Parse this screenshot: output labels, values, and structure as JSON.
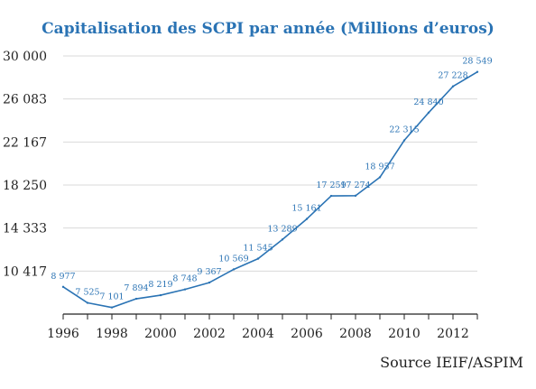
{
  "colors": {
    "title": "#2a73b4",
    "line": "#2a73b4",
    "label": "#2a73b4",
    "axis": "#222222",
    "grid": "#d9d9d9"
  },
  "chart_data": {
    "type": "line",
    "title": "Capitalisation des SCPI par année (Millions d’euros)",
    "source": "Source IEIF/ASPIM",
    "x": [
      1996,
      1997,
      1998,
      1999,
      2000,
      2001,
      2002,
      2003,
      2004,
      2005,
      2006,
      2007,
      2008,
      2009,
      2010,
      2011,
      2012,
      2013
    ],
    "values": [
      8977,
      7525,
      7101,
      7894,
      8219,
      8748,
      9367,
      10569,
      11545,
      13289,
      15161,
      17259,
      17274,
      18957,
      22315,
      24840,
      27228,
      28549
    ],
    "data_labels": [
      "8 977",
      "7 525",
      "7 101",
      "7 894",
      "8 219",
      "8 748",
      "9 367",
      "10 569",
      "11 545",
      "13 289",
      "15 161",
      "17 259",
      "17 274",
      "18 957",
      "22 315",
      "24 840",
      "27 228",
      "28 549"
    ],
    "xtick_values": [
      1996,
      1998,
      2000,
      2002,
      2004,
      2006,
      2008,
      2010,
      2012
    ],
    "xtick_labels": [
      "1996",
      "1998",
      "2000",
      "2002",
      "2004",
      "2006",
      "2008",
      "2010",
      "2012"
    ],
    "ytick_values": [
      10417,
      14333,
      18250,
      22167,
      26083,
      30000
    ],
    "ytick_labels": [
      "10 417",
      "14 333",
      "18 250",
      "22 167",
      "26 083",
      "30 000"
    ],
    "ylim": [
      6500,
      30000
    ],
    "xlim": [
      1996,
      2013
    ],
    "grid": "horizontal",
    "xlabel": "",
    "ylabel": ""
  }
}
